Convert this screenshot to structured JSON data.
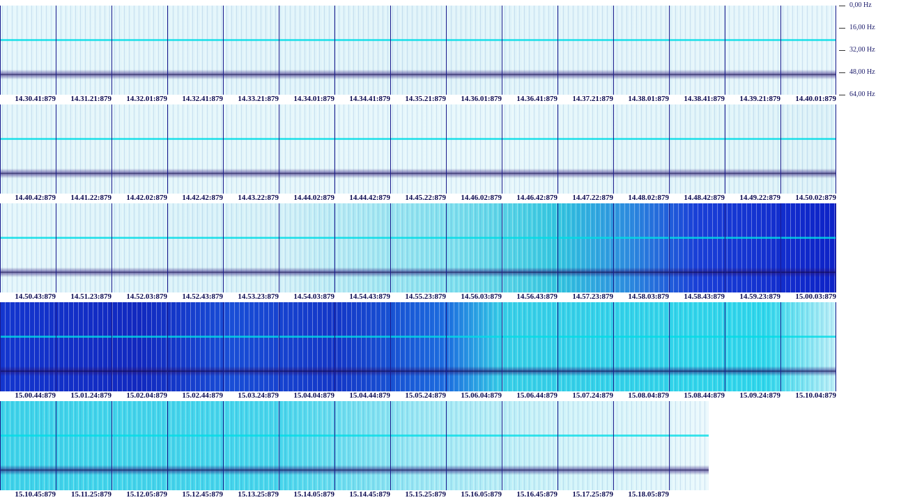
{
  "frequency_axis": {
    "labels": [
      "0,00 Hz",
      "16,00 Hz",
      "32,00 Hz",
      "48,00 Hz",
      "64,00 Hz"
    ]
  },
  "rows": [
    [
      "14.30.41:879",
      "14.31.21:879",
      "14.32.01:879",
      "14.32.41:879",
      "14.33.21:879",
      "14.34.01:879",
      "14.34.41:879",
      "14.35.21:879",
      "14.36.01:879",
      "14.36.41:879",
      "14.37.21:879",
      "14.38.01:879",
      "14.38.41:879",
      "14.39.21:879",
      "14.40.01:879"
    ],
    [
      "14.40.42:879",
      "14.41.22:879",
      "14.42.02:879",
      "14.42.42:879",
      "14.43.22:879",
      "14.44.02:879",
      "14.44.42:879",
      "14.45.22:879",
      "14.46.02:879",
      "14.46.42:879",
      "14.47.22:879",
      "14.48.02:879",
      "14.48.42:879",
      "14.49.22:879",
      "14.50.02:879"
    ],
    [
      "14.50.43:879",
      "14.51.23:879",
      "14.52.03:879",
      "14.52.43:879",
      "14.53.23:879",
      "14.54.03:879",
      "14.54.43:879",
      "14.55.23:879",
      "14.56.03:879",
      "14.56.43:879",
      "14.57.23:879",
      "14.58.03:879",
      "14.58.43:879",
      "14.59.23:879",
      "15.00.03:879"
    ],
    [
      "15.00.44:879",
      "15.01.24:879",
      "15.02.04:879",
      "15.02.44:879",
      "15.03.24:879",
      "15.04.04:879",
      "15.04.44:879",
      "15.05.24:879",
      "15.06.04:879",
      "15.06.44:879",
      "15.07.24:879",
      "15.08.04:879",
      "15.08.44:879",
      "15.09.24:879",
      "15.10.04:879"
    ],
    [
      "15.10.45:879",
      "15.11.25:879",
      "15.12.05:879",
      "15.12.45:879",
      "15.13.25:879",
      "15.14.05:879",
      "15.14.45:879",
      "15.15.25:879",
      "15.16.05:879",
      "15.16.45:879",
      "15.17.25:879",
      "15.18.05:879"
    ]
  ]
}
